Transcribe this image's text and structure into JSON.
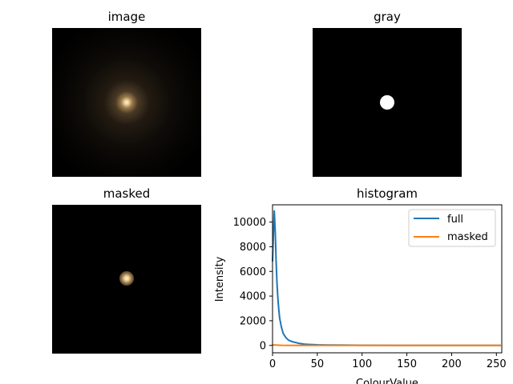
{
  "panels": {
    "image_title": "image",
    "gray_title": "gray",
    "masked_title": "masked",
    "histogram_title": "histogram"
  },
  "chart_data": {
    "type": "line",
    "title": "histogram",
    "xlabel": "ColourValue",
    "ylabel": "Intensity",
    "xlim": [
      0,
      256
    ],
    "ylim": [
      -600,
      11400
    ],
    "xticks": [
      0,
      50,
      100,
      150,
      200,
      250
    ],
    "yticks": [
      0,
      2000,
      4000,
      6000,
      8000,
      10000
    ],
    "grid": false,
    "legend_position": "top-right",
    "series": [
      {
        "name": "full",
        "color": "#1f77b4",
        "x": [
          0,
          1,
          2,
          3,
          4,
          5,
          6,
          7,
          8,
          10,
          12,
          15,
          18,
          22,
          26,
          30,
          35,
          40,
          50,
          60,
          80,
          100,
          150,
          200,
          255
        ],
        "y": [
          6800,
          9000,
          10900,
          9200,
          6800,
          5000,
          3800,
          2900,
          2200,
          1450,
          950,
          620,
          420,
          300,
          230,
          160,
          110,
          80,
          50,
          35,
          20,
          12,
          6,
          3,
          1
        ]
      },
      {
        "name": "masked",
        "color": "#ff7f0e",
        "x": [
          0,
          5,
          10,
          20,
          50,
          100,
          150,
          200,
          255
        ],
        "y": [
          40,
          20,
          10,
          5,
          3,
          2,
          1,
          1,
          1
        ]
      }
    ]
  }
}
